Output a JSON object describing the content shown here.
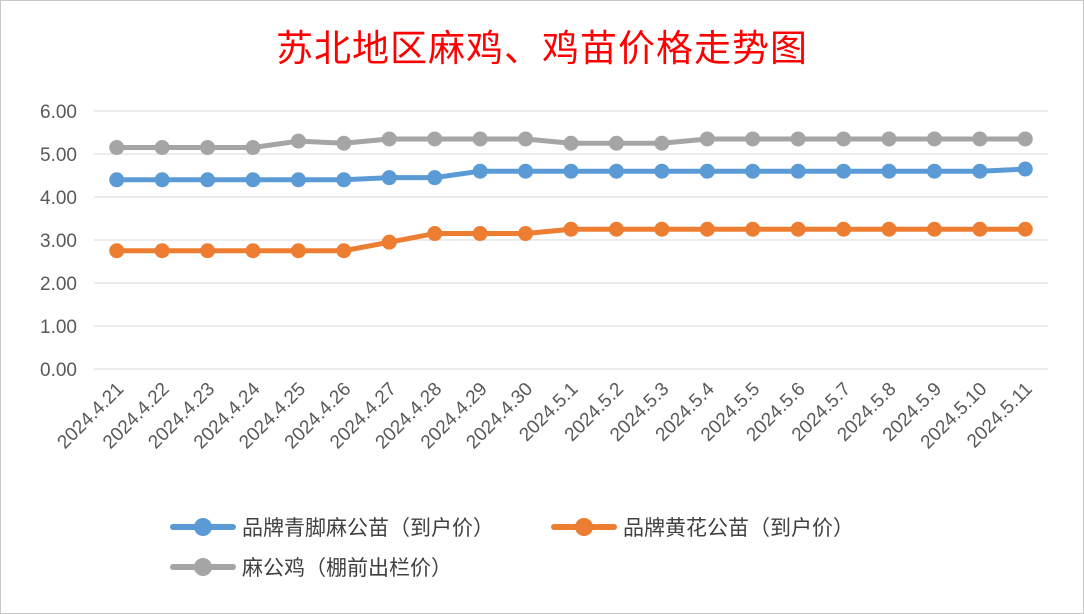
{
  "chart_data": {
    "type": "line",
    "title": "苏北地区麻鸡、鸡苗价格走势图",
    "categories": [
      "2024.4.21",
      "2024.4.22",
      "2024.4.23",
      "2024.4.24",
      "2024.4.25",
      "2024.4.26",
      "2024.4.27",
      "2024.4.28",
      "2024.4.29",
      "2024.4.30",
      "2024.5.1",
      "2024.5.2",
      "2024.5.3",
      "2024.5.4",
      "2024.5.5",
      "2024.5.6",
      "2024.5.7",
      "2024.5.8",
      "2024.5.9",
      "2024.5.10",
      "2024.5.11"
    ],
    "ylim": [
      0,
      6
    ],
    "yticks": [
      "0.00",
      "1.00",
      "2.00",
      "3.00",
      "4.00",
      "5.00",
      "6.00"
    ],
    "grid": true,
    "legend_position": "bottom",
    "series": [
      {
        "name": "品牌青脚麻公苗（到户价）",
        "color": "#5b9bd5",
        "values": [
          4.4,
          4.4,
          4.4,
          4.4,
          4.4,
          4.4,
          4.45,
          4.45,
          4.6,
          4.6,
          4.6,
          4.6,
          4.6,
          4.6,
          4.6,
          4.6,
          4.6,
          4.6,
          4.6,
          4.6,
          4.65
        ]
      },
      {
        "name": "品牌黄花公苗（到户价）",
        "color": "#ed7d31",
        "values": [
          2.75,
          2.75,
          2.75,
          2.75,
          2.75,
          2.75,
          2.95,
          3.15,
          3.15,
          3.15,
          3.25,
          3.25,
          3.25,
          3.25,
          3.25,
          3.25,
          3.25,
          3.25,
          3.25,
          3.25,
          3.25
        ]
      },
      {
        "name": "麻公鸡（棚前出栏价）",
        "color": "#a5a5a5",
        "values": [
          5.15,
          5.15,
          5.15,
          5.15,
          5.3,
          5.25,
          5.35,
          5.35,
          5.35,
          5.35,
          5.25,
          5.25,
          5.25,
          5.35,
          5.35,
          5.35,
          5.35,
          5.35,
          5.35,
          5.35,
          5.35
        ]
      }
    ]
  }
}
